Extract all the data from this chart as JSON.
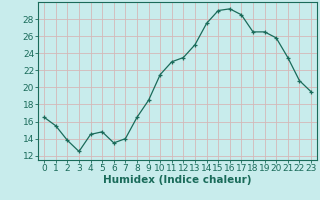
{
  "x": [
    0,
    1,
    2,
    3,
    4,
    5,
    6,
    7,
    8,
    9,
    10,
    11,
    12,
    13,
    14,
    15,
    16,
    17,
    18,
    19,
    20,
    21,
    22,
    23
  ],
  "y": [
    16.5,
    15.5,
    13.8,
    12.5,
    14.5,
    14.8,
    13.5,
    14.0,
    16.5,
    18.5,
    21.5,
    23.0,
    23.5,
    25.0,
    27.5,
    29.0,
    29.2,
    28.5,
    26.5,
    26.5,
    25.8,
    23.5,
    20.8,
    19.5
  ],
  "line_color": "#1a6b5a",
  "marker": "+",
  "marker_size": 3,
  "bg_color": "#c8ecec",
  "grid_color": "#d4b8b8",
  "xlabel": "Humidex (Indice chaleur)",
  "xlim": [
    -0.5,
    23.5
  ],
  "ylim": [
    11.5,
    30.0
  ],
  "yticks": [
    12,
    14,
    16,
    18,
    20,
    22,
    24,
    26,
    28
  ],
  "xticks": [
    0,
    1,
    2,
    3,
    4,
    5,
    6,
    7,
    8,
    9,
    10,
    11,
    12,
    13,
    14,
    15,
    16,
    17,
    18,
    19,
    20,
    21,
    22,
    23
  ],
  "tick_fontsize": 6.5,
  "xlabel_fontsize": 7.5
}
